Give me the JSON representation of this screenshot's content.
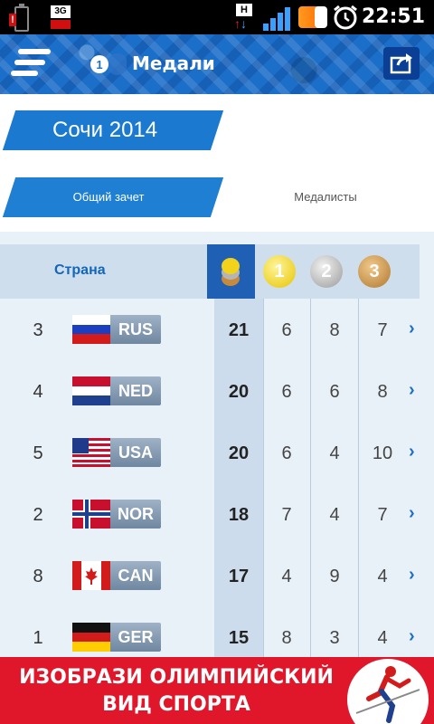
{
  "status_bar": {
    "time": "22:51",
    "network": "3G",
    "h_label": "H"
  },
  "app_bar": {
    "title": "Медали"
  },
  "games": {
    "label": "Сочи 2014"
  },
  "tabs": [
    {
      "label": "Общий зачет",
      "active": true
    },
    {
      "label": "Медалисты",
      "active": false
    }
  ],
  "table": {
    "country_header": "Страна",
    "medal_headers": [
      "1",
      "2",
      "3"
    ],
    "rows": [
      {
        "rank": "3",
        "code": "RUS",
        "total": "21",
        "gold": "6",
        "silver": "8",
        "bronze": "7"
      },
      {
        "rank": "4",
        "code": "NED",
        "total": "20",
        "gold": "6",
        "silver": "6",
        "bronze": "8"
      },
      {
        "rank": "5",
        "code": "USA",
        "total": "20",
        "gold": "6",
        "silver": "4",
        "bronze": "10"
      },
      {
        "rank": "2",
        "code": "NOR",
        "total": "18",
        "gold": "7",
        "silver": "4",
        "bronze": "7"
      },
      {
        "rank": "8",
        "code": "CAN",
        "total": "17",
        "gold": "4",
        "silver": "9",
        "bronze": "4"
      },
      {
        "rank": "1",
        "code": "GER",
        "total": "15",
        "gold": "8",
        "silver": "3",
        "bronze": "4"
      }
    ]
  },
  "ad": {
    "line1": "ИЗОБРАЗИ ОЛИМПИЙСКИЙ",
    "line2": "ВИД СПОРТА"
  },
  "colors": {
    "accent": "#1f7fd2",
    "gold": "#f2d21a",
    "silver": "#a9a9a9",
    "bronze": "#c58a3c",
    "ad_red": "#e0162b"
  }
}
